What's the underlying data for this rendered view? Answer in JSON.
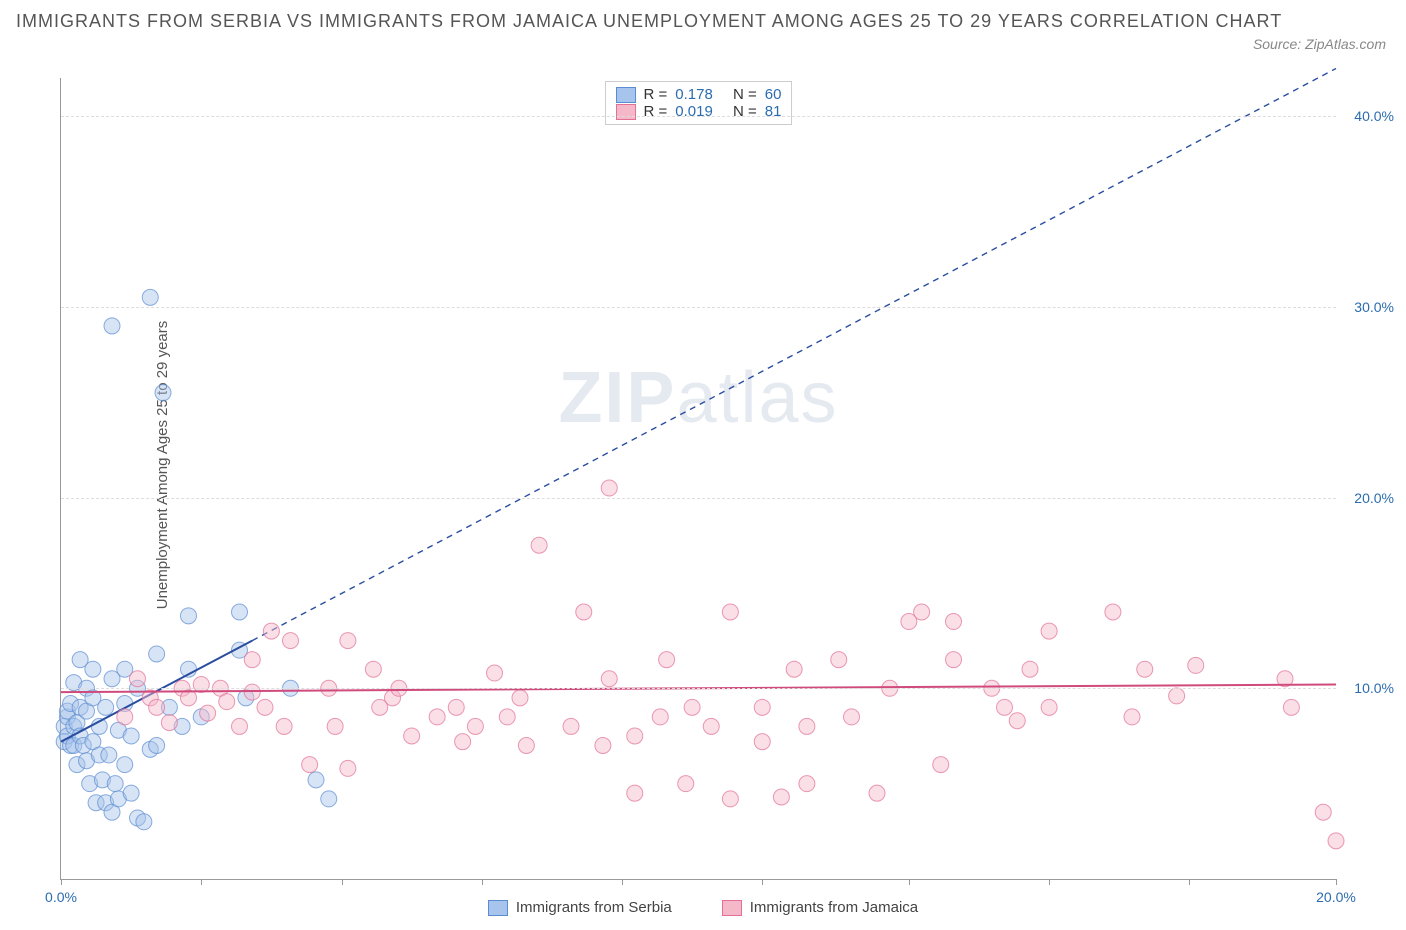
{
  "title": "IMMIGRANTS FROM SERBIA VS IMMIGRANTS FROM JAMAICA UNEMPLOYMENT AMONG AGES 25 TO 29 YEARS CORRELATION CHART",
  "source": "Source: ZipAtlas.com",
  "ylabel": "Unemployment Among Ages 25 to 29 years",
  "watermark_zip": "ZIP",
  "watermark_atlas": "atlas",
  "chart": {
    "type": "scatter",
    "xlim": [
      0,
      20
    ],
    "ylim": [
      0,
      42
    ],
    "xtick_positions": [
      0,
      2.2,
      4.4,
      6.6,
      8.8,
      11.0,
      13.3,
      15.5,
      17.7,
      20.0
    ],
    "xtick_labels": {
      "0": "0.0%",
      "20": "20.0%"
    },
    "ytick_positions": [
      10,
      20,
      30,
      40
    ],
    "ytick_labels": {
      "10": "10.0%",
      "20": "20.0%",
      "30": "30.0%",
      "40": "40.0%"
    },
    "grid_color": "#dddddd",
    "background_color": "#ffffff",
    "marker_radius": 8,
    "marker_opacity": 0.45,
    "series": [
      {
        "name": "Immigrants from Serbia",
        "color_fill": "#a7c4ec",
        "color_stroke": "#5b8bd0",
        "R": "0.178",
        "N": "60",
        "trend": {
          "x1": 0,
          "y1": 7.2,
          "x2": 3.0,
          "y2": 12.5,
          "dash_x2": 20.0,
          "dash_y2": 42.5,
          "color": "#2a4da0",
          "width": 2
        },
        "points": [
          [
            0.05,
            8.0
          ],
          [
            0.05,
            7.2
          ],
          [
            0.1,
            8.5
          ],
          [
            0.1,
            7.5
          ],
          [
            0.1,
            8.8
          ],
          [
            0.15,
            7.0
          ],
          [
            0.15,
            9.2
          ],
          [
            0.2,
            8.0
          ],
          [
            0.2,
            7.0
          ],
          [
            0.2,
            10.3
          ],
          [
            0.25,
            8.2
          ],
          [
            0.25,
            6.0
          ],
          [
            0.3,
            7.5
          ],
          [
            0.3,
            9.0
          ],
          [
            0.3,
            11.5
          ],
          [
            0.35,
            7.0
          ],
          [
            0.4,
            6.2
          ],
          [
            0.4,
            8.8
          ],
          [
            0.4,
            10.0
          ],
          [
            0.45,
            5.0
          ],
          [
            0.5,
            7.2
          ],
          [
            0.5,
            9.5
          ],
          [
            0.5,
            11.0
          ],
          [
            0.55,
            4.0
          ],
          [
            0.6,
            6.5
          ],
          [
            0.6,
            8.0
          ],
          [
            0.65,
            5.2
          ],
          [
            0.7,
            4.0
          ],
          [
            0.7,
            9.0
          ],
          [
            0.75,
            6.5
          ],
          [
            0.8,
            3.5
          ],
          [
            0.8,
            10.5
          ],
          [
            0.85,
            5.0
          ],
          [
            0.9,
            7.8
          ],
          [
            0.9,
            4.2
          ],
          [
            1.0,
            6.0
          ],
          [
            1.0,
            9.2
          ],
          [
            1.0,
            11.0
          ],
          [
            1.1,
            4.5
          ],
          [
            1.1,
            7.5
          ],
          [
            1.2,
            3.2
          ],
          [
            1.2,
            10.0
          ],
          [
            1.3,
            3.0
          ],
          [
            1.4,
            6.8
          ],
          [
            1.5,
            11.8
          ],
          [
            1.5,
            7.0
          ],
          [
            1.7,
            9.0
          ],
          [
            1.9,
            8.0
          ],
          [
            2.0,
            13.8
          ],
          [
            2.0,
            11.0
          ],
          [
            2.2,
            8.5
          ],
          [
            2.8,
            12.0
          ],
          [
            2.8,
            14.0
          ],
          [
            2.9,
            9.5
          ],
          [
            3.6,
            10.0
          ],
          [
            4.0,
            5.2
          ],
          [
            4.2,
            4.2
          ],
          [
            0.8,
            29.0
          ],
          [
            1.4,
            30.5
          ],
          [
            1.6,
            25.5
          ]
        ]
      },
      {
        "name": "Immigrants from Jamaica",
        "color_fill": "#f5b8c9",
        "color_stroke": "#e16f96",
        "R": "0.019",
        "N": "81",
        "trend": {
          "x1": 0,
          "y1": 9.8,
          "x2": 20,
          "y2": 10.2,
          "color": "#d04a7c",
          "width": 2
        },
        "points": [
          [
            1.0,
            8.5
          ],
          [
            1.2,
            10.5
          ],
          [
            1.4,
            9.5
          ],
          [
            1.5,
            9.0
          ],
          [
            1.7,
            8.2
          ],
          [
            1.9,
            10.0
          ],
          [
            2.0,
            9.5
          ],
          [
            2.2,
            10.2
          ],
          [
            2.3,
            8.7
          ],
          [
            2.5,
            10.0
          ],
          [
            2.6,
            9.3
          ],
          [
            2.8,
            8.0
          ],
          [
            3.0,
            9.8
          ],
          [
            3.0,
            11.5
          ],
          [
            3.2,
            9.0
          ],
          [
            3.3,
            13.0
          ],
          [
            3.5,
            8.0
          ],
          [
            3.6,
            12.5
          ],
          [
            3.9,
            6.0
          ],
          [
            4.2,
            10.0
          ],
          [
            4.3,
            8.0
          ],
          [
            4.5,
            12.5
          ],
          [
            4.5,
            5.8
          ],
          [
            4.9,
            11.0
          ],
          [
            5.2,
            9.5
          ],
          [
            5.3,
            10.0
          ],
          [
            5.5,
            7.5
          ],
          [
            5.9,
            8.5
          ],
          [
            6.2,
            9.0
          ],
          [
            6.3,
            7.2
          ],
          [
            6.5,
            8.0
          ],
          [
            6.8,
            10.8
          ],
          [
            7.0,
            8.5
          ],
          [
            7.2,
            9.5
          ],
          [
            7.3,
            7.0
          ],
          [
            7.5,
            17.5
          ],
          [
            8.0,
            8.0
          ],
          [
            8.2,
            14.0
          ],
          [
            8.5,
            7.0
          ],
          [
            8.6,
            10.5
          ],
          [
            8.6,
            20.5
          ],
          [
            9.0,
            7.5
          ],
          [
            9.0,
            4.5
          ],
          [
            9.4,
            8.5
          ],
          [
            9.5,
            11.5
          ],
          [
            9.8,
            5.0
          ],
          [
            9.9,
            9.0
          ],
          [
            10.2,
            8.0
          ],
          [
            10.5,
            14.0
          ],
          [
            10.5,
            4.2
          ],
          [
            11.0,
            9.0
          ],
          [
            11.0,
            7.2
          ],
          [
            11.3,
            4.3
          ],
          [
            11.5,
            11.0
          ],
          [
            11.7,
            8.0
          ],
          [
            11.7,
            5.0
          ],
          [
            12.2,
            11.5
          ],
          [
            12.4,
            8.5
          ],
          [
            12.8,
            4.5
          ],
          [
            13.0,
            10.0
          ],
          [
            13.3,
            13.5
          ],
          [
            13.5,
            14.0
          ],
          [
            13.8,
            6.0
          ],
          [
            14.0,
            11.5
          ],
          [
            14.0,
            13.5
          ],
          [
            14.6,
            10.0
          ],
          [
            14.8,
            9.0
          ],
          [
            15.0,
            8.3
          ],
          [
            15.2,
            11.0
          ],
          [
            15.5,
            9.0
          ],
          [
            15.5,
            13.0
          ],
          [
            16.5,
            14.0
          ],
          [
            16.8,
            8.5
          ],
          [
            17.0,
            11.0
          ],
          [
            17.5,
            9.6
          ],
          [
            17.8,
            11.2
          ],
          [
            19.2,
            10.5
          ],
          [
            19.3,
            9.0
          ],
          [
            19.8,
            3.5
          ],
          [
            20.0,
            2.0
          ],
          [
            5.0,
            9.0
          ]
        ]
      }
    ]
  },
  "legend_labels": {
    "R": "R =",
    "N": "N ="
  },
  "bottom_legend": [
    "Immigrants from Serbia",
    "Immigrants from Jamaica"
  ]
}
